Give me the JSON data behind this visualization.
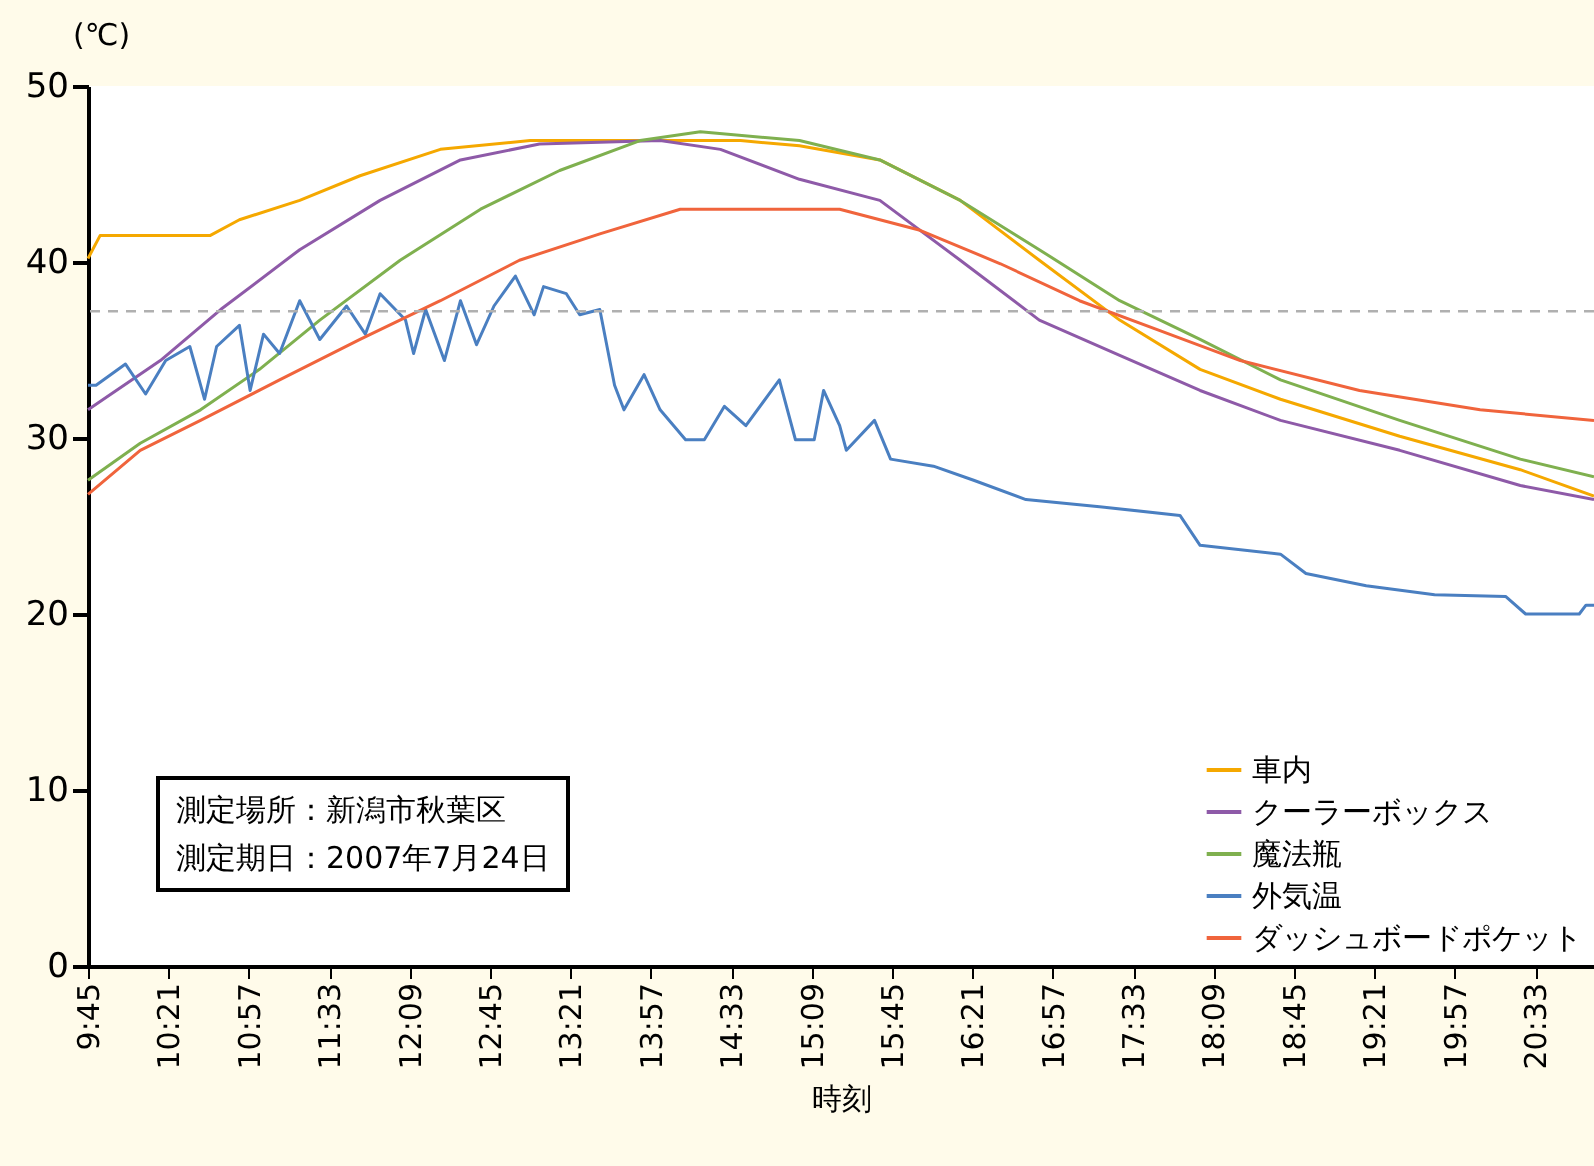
{
  "chart_data": {
    "type": "line",
    "xlabel": "時刻",
    "ylabel": "(℃)",
    "xlim": [
      9.75,
      20.99
    ],
    "ylim": [
      0,
      50
    ],
    "yticks": [
      0,
      10,
      20,
      30,
      40,
      50
    ],
    "xticks": [
      {
        "value": 9.75,
        "label": "9:45"
      },
      {
        "value": 10.35,
        "label": "10:21"
      },
      {
        "value": 10.95,
        "label": "10:57"
      },
      {
        "value": 11.55,
        "label": "11:33"
      },
      {
        "value": 12.15,
        "label": "12:09"
      },
      {
        "value": 12.75,
        "label": "12:45"
      },
      {
        "value": 13.35,
        "label": "13:21"
      },
      {
        "value": 13.95,
        "label": "13:57"
      },
      {
        "value": 14.55,
        "label": "14:33"
      },
      {
        "value": 15.15,
        "label": "15:09"
      },
      {
        "value": 15.75,
        "label": "15:45"
      },
      {
        "value": 16.35,
        "label": "16:21"
      },
      {
        "value": 16.95,
        "label": "16:57"
      },
      {
        "value": 17.55,
        "label": "17:33"
      },
      {
        "value": 18.15,
        "label": "18:09"
      },
      {
        "value": 18.75,
        "label": "18:45"
      },
      {
        "value": 19.35,
        "label": "19:21"
      },
      {
        "value": 19.95,
        "label": "19:57"
      },
      {
        "value": 20.55,
        "label": "20:33"
      }
    ],
    "grid": false,
    "legend": "bottom right",
    "line_style": "solid",
    "marker": "none",
    "ref_lines": [
      {
        "axis": "y",
        "value": 37.2,
        "color": "#b0b0b0",
        "line_style": "dashed"
      }
    ],
    "annotations": [
      "測定場所：新潟市秋葉区",
      "測定期日：2007年7月24日"
    ],
    "series": [
      {
        "name": "車内",
        "color": "#f5a800",
        "x": [
          9.75,
          9.84,
          10.66,
          10.88,
          11.33,
          11.78,
          12.38,
          13.05,
          14.62,
          15.06,
          15.66,
          16.26,
          16.85,
          17.45,
          18.05,
          18.65,
          19.54,
          20.44,
          20.99
        ],
        "values": [
          40.2,
          41.5,
          41.5,
          42.4,
          43.5,
          44.9,
          46.4,
          46.9,
          46.9,
          46.6,
          45.8,
          43.5,
          40.1,
          36.7,
          33.9,
          32.2,
          30.1,
          28.2,
          26.7
        ]
      },
      {
        "name": "クーラーボックス",
        "color": "#8e5aa8",
        "x": [
          9.75,
          10.29,
          10.74,
          11.33,
          11.93,
          12.53,
          13.12,
          14.02,
          14.47,
          15.06,
          15.66,
          16.26,
          16.85,
          17.45,
          18.05,
          18.65,
          19.54,
          20.44,
          20.99
        ],
        "values": [
          31.6,
          34.4,
          37.3,
          40.7,
          43.5,
          45.8,
          46.7,
          46.9,
          46.4,
          44.7,
          43.5,
          40.1,
          36.7,
          34.7,
          32.7,
          31.0,
          29.3,
          27.3,
          26.5
        ]
      },
      {
        "name": "魔法瓶",
        "color": "#7fb04f",
        "x": [
          9.75,
          10.14,
          10.59,
          11.03,
          11.48,
          12.08,
          12.68,
          13.27,
          13.87,
          14.32,
          15.06,
          15.66,
          16.26,
          16.85,
          17.45,
          18.05,
          18.65,
          19.54,
          20.44,
          20.99
        ],
        "values": [
          27.6,
          29.7,
          31.6,
          33.9,
          36.7,
          40.1,
          43.0,
          45.2,
          46.9,
          47.4,
          46.9,
          45.8,
          43.5,
          40.7,
          37.8,
          35.6,
          33.3,
          31.0,
          28.8,
          27.8
        ]
      },
      {
        "name": "外気温",
        "color": "#4a7fc1",
        "x": [
          9.75,
          9.81,
          10.03,
          10.18,
          10.33,
          10.51,
          10.62,
          10.71,
          10.88,
          10.96,
          11.06,
          11.18,
          11.33,
          11.48,
          11.68,
          11.82,
          11.93,
          12.12,
          12.18,
          12.27,
          12.41,
          12.53,
          12.65,
          12.78,
          12.94,
          13.08,
          13.15,
          13.32,
          13.42,
          13.57,
          13.68,
          13.75,
          13.9,
          14.02,
          14.21,
          14.35,
          14.5,
          14.66,
          14.91,
          15.03,
          15.17,
          15.24,
          15.36,
          15.41,
          15.62,
          15.74,
          16.06,
          16.36,
          16.75,
          17.3,
          17.9,
          18.05,
          18.65,
          18.84,
          19.29,
          19.8,
          20.33,
          20.48,
          20.88,
          20.93,
          20.99
        ],
        "values": [
          33.0,
          33.0,
          34.2,
          32.5,
          34.4,
          35.2,
          32.2,
          35.2,
          36.4,
          32.7,
          35.9,
          34.8,
          37.8,
          35.6,
          37.5,
          35.9,
          38.2,
          36.7,
          34.8,
          37.3,
          34.4,
          37.8,
          35.3,
          37.5,
          39.2,
          37.0,
          38.6,
          38.2,
          37.0,
          37.3,
          33.0,
          31.6,
          33.6,
          31.6,
          29.9,
          29.9,
          31.8,
          30.7,
          33.3,
          29.9,
          29.9,
          32.7,
          30.7,
          29.3,
          31.0,
          28.8,
          28.4,
          27.6,
          26.5,
          26.1,
          25.6,
          23.9,
          23.4,
          22.3,
          21.6,
          21.1,
          21.0,
          20.0,
          20.0,
          20.5,
          20.5
        ]
      },
      {
        "name": "ダッシュボードポケット",
        "color": "#f0643c",
        "x": [
          9.75,
          10.14,
          10.59,
          11.18,
          11.78,
          12.38,
          12.97,
          13.57,
          14.17,
          15.36,
          15.96,
          16.56,
          17.15,
          17.75,
          18.35,
          19.24,
          20.14,
          20.99
        ],
        "values": [
          26.8,
          29.3,
          31.0,
          33.3,
          35.6,
          37.8,
          40.1,
          41.6,
          43.0,
          43.0,
          41.8,
          39.9,
          37.8,
          36.1,
          34.4,
          32.7,
          31.6,
          31.0
        ]
      }
    ]
  }
}
